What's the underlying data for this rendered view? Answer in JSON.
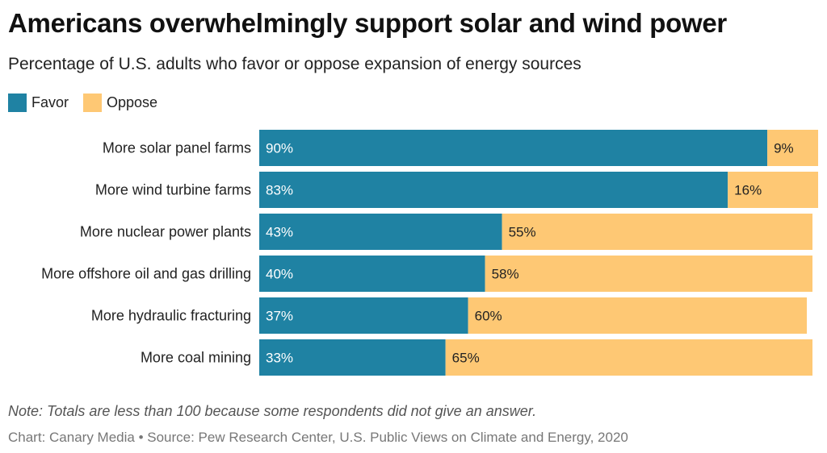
{
  "header": {
    "title": "Americans overwhelmingly support solar and wind power",
    "subtitle": "Percentage of U.S. adults who favor or oppose expansion of energy sources"
  },
  "colors": {
    "favor": "#1f82a3",
    "oppose": "#fec874"
  },
  "chart_data": {
    "type": "bar",
    "orientation": "horizontal",
    "stacked": true,
    "categories": [
      "More solar panel farms",
      "More wind turbine farms",
      "More nuclear power plants",
      "More offshore oil and gas drilling",
      "More hydraulic fracturing",
      "More coal mining"
    ],
    "series": [
      {
        "name": "Favor",
        "values": [
          90,
          83,
          43,
          40,
          37,
          33
        ]
      },
      {
        "name": "Oppose",
        "values": [
          9,
          16,
          55,
          58,
          60,
          65
        ]
      }
    ],
    "value_suffix": "%",
    "xlim": [
      0,
      100
    ],
    "grid": false,
    "legend": "top-left"
  },
  "footer": {
    "note": "Note: Totals are less than 100 because some respondents did not give an answer.",
    "source": "Chart: Canary Media • Source: Pew Research Center, U.S. Public Views on Climate and Energy, 2020"
  }
}
